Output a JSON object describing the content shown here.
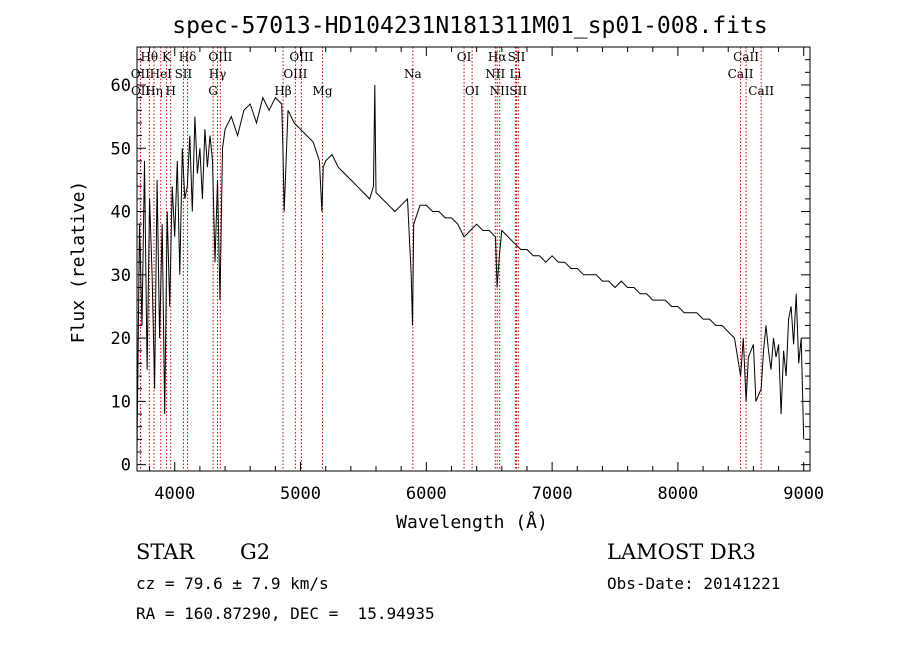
{
  "chart_data": {
    "type": "line",
    "title": "spec-57013-HD104231N181311M01_sp01-008.fits",
    "xlabel": "Wavelength (Å)",
    "ylabel": "Flux (relative)",
    "xlim": [
      3700,
      9050
    ],
    "ylim": [
      -1,
      66
    ],
    "xticks": [
      4000,
      5000,
      6000,
      7000,
      8000,
      9000
    ],
    "yticks": [
      0,
      10,
      20,
      30,
      40,
      50,
      60
    ],
    "grid": false,
    "series": [
      {
        "name": "flux",
        "x": [
          3700,
          3720,
          3740,
          3760,
          3780,
          3800,
          3820,
          3840,
          3860,
          3880,
          3900,
          3920,
          3940,
          3960,
          3980,
          4000,
          4020,
          4040,
          4060,
          4080,
          4100,
          4120,
          4140,
          4160,
          4180,
          4200,
          4220,
          4240,
          4260,
          4280,
          4300,
          4320,
          4340,
          4360,
          4380,
          4400,
          4450,
          4500,
          4550,
          4600,
          4650,
          4700,
          4750,
          4800,
          4850,
          4860,
          4870,
          4900,
          4950,
          5000,
          5050,
          5100,
          5150,
          5170,
          5180,
          5200,
          5250,
          5300,
          5350,
          5400,
          5450,
          5500,
          5550,
          5580,
          5590,
          5600,
          5650,
          5700,
          5750,
          5800,
          5850,
          5880,
          5890,
          5900,
          5950,
          6000,
          6050,
          6100,
          6150,
          6200,
          6250,
          6300,
          6350,
          6400,
          6450,
          6500,
          6550,
          6563,
          6580,
          6600,
          6650,
          6700,
          6750,
          6800,
          6850,
          6900,
          6950,
          7000,
          7050,
          7100,
          7150,
          7200,
          7250,
          7300,
          7350,
          7400,
          7450,
          7500,
          7550,
          7600,
          7650,
          7700,
          7750,
          7800,
          7850,
          7900,
          7950,
          8000,
          8050,
          8100,
          8150,
          8200,
          8250,
          8300,
          8350,
          8400,
          8450,
          8498,
          8520,
          8542,
          8560,
          8600,
          8620,
          8662,
          8680,
          8700,
          8720,
          8740,
          8760,
          8780,
          8800,
          8820,
          8840,
          8860,
          8880,
          8900,
          8920,
          8940,
          8960,
          8980,
          9000
        ],
        "values": [
          2,
          38,
          22,
          48,
          15,
          42,
          30,
          12,
          45,
          20,
          38,
          8,
          40,
          25,
          44,
          36,
          48,
          30,
          50,
          42,
          44,
          52,
          40,
          55,
          46,
          50,
          42,
          53,
          47,
          52,
          48,
          32,
          45,
          26,
          50,
          53,
          55,
          52,
          56,
          57,
          54,
          58,
          56,
          58,
          57,
          50,
          40,
          56,
          54,
          53,
          52,
          51,
          48,
          40,
          47,
          48,
          49,
          47,
          46,
          45,
          44,
          43,
          42,
          44,
          60,
          43,
          42,
          41,
          40,
          41,
          42,
          30,
          22,
          38,
          41,
          41,
          40,
          40,
          39,
          39,
          38,
          36,
          37,
          38,
          37,
          37,
          36,
          28,
          33,
          37,
          36,
          35,
          34,
          34,
          33,
          33,
          32,
          33,
          32,
          32,
          31,
          31,
          30,
          30,
          30,
          29,
          29,
          28,
          29,
          28,
          28,
          27,
          27,
          26,
          26,
          26,
          25,
          25,
          24,
          24,
          24,
          23,
          23,
          22,
          22,
          21,
          20,
          14,
          20,
          10,
          17,
          19,
          10,
          12,
          18,
          22,
          18,
          15,
          20,
          17,
          19,
          8,
          18,
          14,
          23,
          25,
          19,
          27,
          16,
          20,
          4
        ]
      }
    ],
    "lines": [
      {
        "label": "OII",
        "x": 3727,
        "row": 2
      },
      {
        "label": "OII",
        "x": 3729,
        "row": 3
      },
      {
        "label": "Hθ",
        "x": 3798,
        "row": 1
      },
      {
        "label": "Hη",
        "x": 3835,
        "row": 3
      },
      {
        "label": "HeI",
        "x": 3889,
        "row": 2
      },
      {
        "label": "K",
        "x": 3934,
        "row": 1
      },
      {
        "label": "H",
        "x": 3968,
        "row": 3
      },
      {
        "label": "SII",
        "x": 4069,
        "row": 2
      },
      {
        "label": "Hδ",
        "x": 4102,
        "row": 1
      },
      {
        "label": "Hγ",
        "x": 4340,
        "row": 2
      },
      {
        "label": "OIII",
        "x": 4363,
        "row": 1
      },
      {
        "label": "G",
        "x": 4305,
        "row": 3
      },
      {
        "label": "Hβ",
        "x": 4861,
        "row": 3
      },
      {
        "label": "OIII",
        "x": 4959,
        "row": 2
      },
      {
        "label": "OIII",
        "x": 5007,
        "row": 1
      },
      {
        "label": "Mg",
        "x": 5175,
        "row": 3
      },
      {
        "label": "Na",
        "x": 5893,
        "row": 2
      },
      {
        "label": "OI",
        "x": 6300,
        "row": 1
      },
      {
        "label": "OI",
        "x": 6364,
        "row": 3
      },
      {
        "label": "NII",
        "x": 6548,
        "row": 2
      },
      {
        "label": "Hα",
        "x": 6563,
        "row": 1
      },
      {
        "label": "NII",
        "x": 6583,
        "row": 3
      },
      {
        "label": "Li",
        "x": 6708,
        "row": 2
      },
      {
        "label": "SII",
        "x": 6717,
        "row": 1
      },
      {
        "label": "SII",
        "x": 6731,
        "row": 3
      },
      {
        "label": "CaII",
        "x": 8498,
        "row": 2
      },
      {
        "label": "CaII",
        "x": 8542,
        "row": 1
      },
      {
        "label": "CaII",
        "x": 8662,
        "row": 3
      }
    ]
  },
  "info": {
    "object_type": "STAR",
    "subclass": "G2",
    "survey": "LAMOST DR3",
    "cz": "cz = 79.6 ± 7.9 km/s",
    "obs_date": "Obs-Date: 20141221",
    "coords": "RA = 160.87290, DEC =  15.94935"
  },
  "colors": {
    "line_markers": "#cc0000",
    "spectrum": "#000000"
  }
}
